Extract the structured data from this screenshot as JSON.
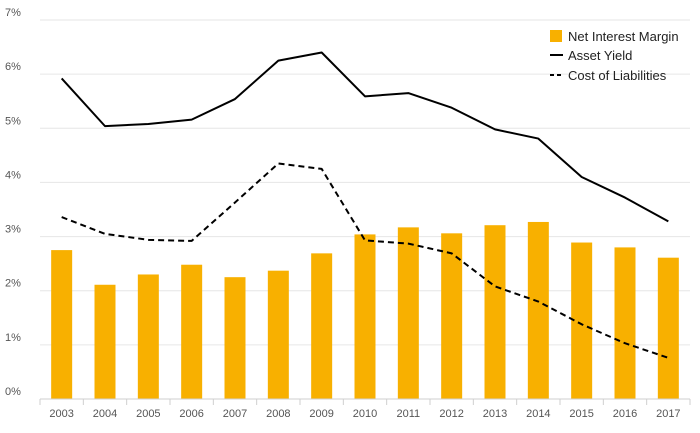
{
  "chart_data": {
    "type": "bar",
    "categories": [
      "2003",
      "2004",
      "2005",
      "2006",
      "2007",
      "2008",
      "2009",
      "2010",
      "2011",
      "2012",
      "2013",
      "2014",
      "2015",
      "2016",
      "2017"
    ],
    "series": [
      {
        "name": "Net Interest Margin",
        "kind": "bar",
        "color": "#F8B000",
        "values": [
          2.75,
          2.11,
          2.3,
          2.48,
          2.25,
          2.37,
          2.69,
          3.04,
          3.17,
          3.06,
          3.21,
          3.27,
          2.89,
          2.8,
          2.61
        ]
      },
      {
        "name": "Asset Yield",
        "kind": "line",
        "style": "solid",
        "color": "#000000",
        "values": [
          5.92,
          5.04,
          5.08,
          5.16,
          5.54,
          6.25,
          6.4,
          5.59,
          5.65,
          5.38,
          4.98,
          4.81,
          4.1,
          3.72,
          3.28
        ]
      },
      {
        "name": "Cost of Liabilities",
        "kind": "line",
        "style": "dashed",
        "color": "#000000",
        "values": [
          3.36,
          3.05,
          2.94,
          2.92,
          3.63,
          4.35,
          4.25,
          2.93,
          2.87,
          2.69,
          2.08,
          1.8,
          1.38,
          1.03,
          0.76
        ]
      }
    ],
    "yticks": [
      "0%",
      "1%",
      "2%",
      "3%",
      "4%",
      "5%",
      "6%",
      "7%"
    ],
    "ylim": [
      0,
      7
    ],
    "grid": true,
    "legend_position": "top-right",
    "title": "",
    "xlabel": "",
    "ylabel": ""
  }
}
